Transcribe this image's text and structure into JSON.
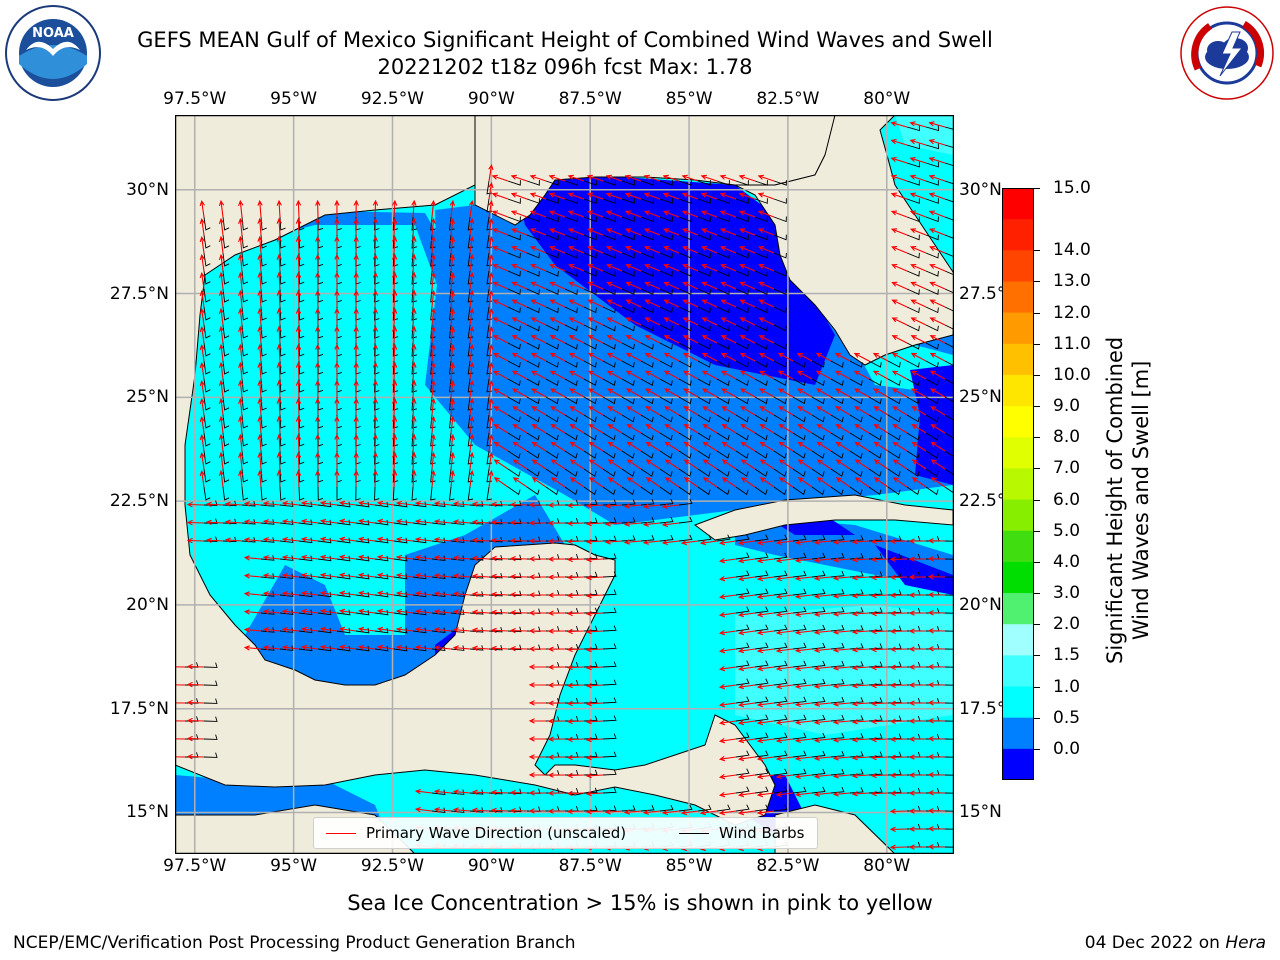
{
  "title": {
    "line1": "GEFS MEAN Gulf of Mexico Significant Height of Combined Wind Waves and Swell",
    "line2": "20221202 t18z 096h fcst   Max: 1.78"
  },
  "logos": {
    "left": {
      "name": "NOAA",
      "ring_text": "NATIONAL OCEANIC AND ATMOSPHERIC ADMINISTRATION · U.S. DEPARTMENT OF COMMERCE"
    },
    "right": {
      "name": "NATIONAL WEATHER SERVICE"
    }
  },
  "map": {
    "lon_range": [
      -98.0,
      -78.3
    ],
    "lat_range": [
      14.0,
      31.8
    ],
    "lon_ticks": [
      "97.5°W",
      "95°W",
      "92.5°W",
      "90°W",
      "87.5°W",
      "85°W",
      "82.5°W",
      "80°W"
    ],
    "lon_tick_values": [
      -97.5,
      -95,
      -92.5,
      -90,
      -87.5,
      -85,
      -82.5,
      -80
    ],
    "lat_ticks": [
      "30°N",
      "27.5°N",
      "25°N",
      "22.5°N",
      "20°N",
      "17.5°N",
      "15°N"
    ],
    "lat_tick_values": [
      30,
      27.5,
      25,
      22.5,
      20,
      17.5,
      15
    ],
    "colors": {
      "land": "#efecdc",
      "gridline": "#b0b0b0",
      "wave_arrow": "#ff0000",
      "wind_barb": "#000000"
    },
    "wave_height_regions_m": [
      {
        "range": "0.0-0.5",
        "color": "#0000ff",
        "where": "NE Gulf, Straits of Florida, NW Caribbean pockets"
      },
      {
        "range": "0.5-1.0",
        "color": "#0080ff",
        "where": "Central/E Gulf, Bay of Campeche edges, Pacific coast"
      },
      {
        "range": "1.0-1.5",
        "color": "#00ffff",
        "where": "W Gulf, Yucatan Channel, Caribbean, Atlantic"
      },
      {
        "range": "1.5-2.0",
        "color": "#40ffff",
        "where": "Central Caribbean patches"
      }
    ]
  },
  "colorbar": {
    "labels": [
      "15.0",
      "14.0",
      "13.0",
      "12.0",
      "11.0",
      "10.0",
      "9.0",
      "8.0",
      "7.0",
      "6.0",
      "5.0",
      "4.0",
      "3.0",
      "2.0",
      "1.5",
      "1.0",
      "0.5",
      "0.0"
    ],
    "colors_top_to_bottom": [
      "#ff0000",
      "#ff2000",
      "#ff4500",
      "#ff7000",
      "#ff9a00",
      "#ffc000",
      "#ffe600",
      "#ffff00",
      "#e0ff00",
      "#b8f800",
      "#88ee00",
      "#40dd10",
      "#00dd00",
      "#50f070",
      "#a0ffff",
      "#40ffff",
      "#00ffff",
      "#0080ff",
      "#0000ff"
    ],
    "title_line1": "Significant Height of Combined",
    "title_line2": "Wind Waves and Swell [m]"
  },
  "legend": {
    "wave_dir": "Primary Wave Direction (unscaled)",
    "wind_barbs": "Wind Barbs"
  },
  "ice_note": "Sea Ice Concentration > 15% is shown in pink to yellow",
  "footer": {
    "left": "NCEP/EMC/Verification Post Processing Product Generation Branch",
    "date": "04 Dec 2022 on ",
    "machine": "Hera"
  }
}
